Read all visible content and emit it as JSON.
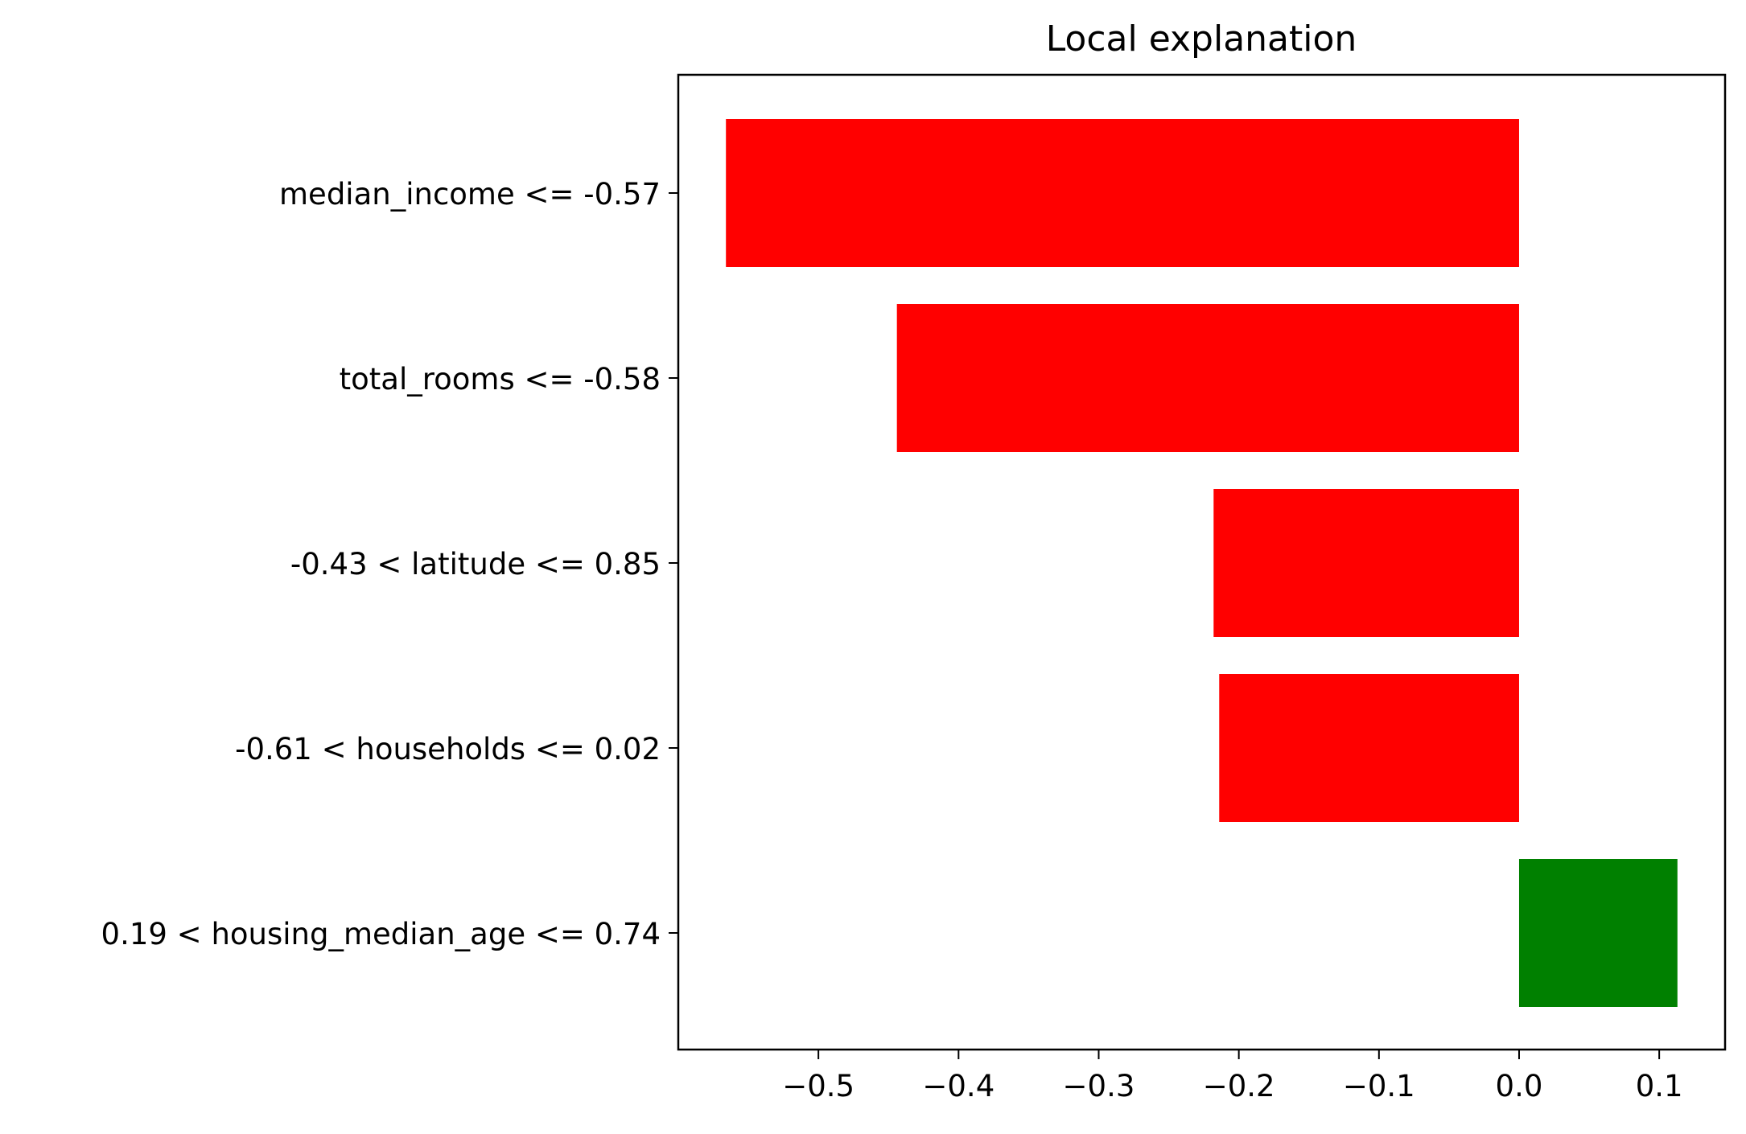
{
  "chart_data": {
    "type": "bar",
    "orientation": "horizontal",
    "title": "Local explanation",
    "xlabel": "",
    "ylabel": "",
    "categories": [
      "median_income <= -0.57",
      "total_rooms <= -0.58",
      "-0.43 < latitude <= 0.85",
      "-0.61 < households <= 0.02",
      "0.19 < housing_median_age <= 0.74"
    ],
    "values": [
      -0.566,
      -0.444,
      -0.218,
      -0.214,
      0.113
    ],
    "xlim": [
      -0.6,
      0.147
    ],
    "xticks": [
      -0.5,
      -0.4,
      -0.3,
      -0.2,
      -0.1,
      0.0,
      0.1
    ],
    "xtick_labels": [
      "−0.5",
      "−0.4",
      "−0.3",
      "−0.2",
      "−0.1",
      "0.0",
      "0.1"
    ],
    "grid": false,
    "colors": {
      "negative": "#ff0000",
      "positive": "#008000",
      "axis": "#000000",
      "background": "#ffffff"
    }
  }
}
